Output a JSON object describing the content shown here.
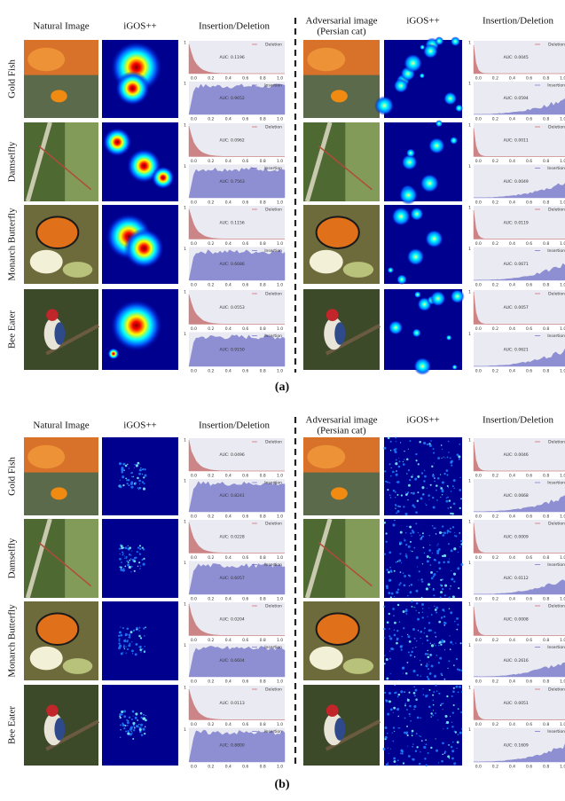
{
  "panels": [
    {
      "caption": "(a)",
      "halves": [
        {
          "headers": {
            "image": [
              "Natural Image"
            ],
            "saliency": "iGOS++",
            "curves": "Insertion/Deletion"
          },
          "rows": [
            {
              "label": "Gold Fish",
              "deletion_auc": "AUC: 0.1196",
              "insertion_auc": "AUC: 0.9652"
            },
            {
              "label": "Damselfly",
              "deletion_auc": "AUC: 0.0962",
              "insertion_auc": "AUC: 0.7563"
            },
            {
              "label": "Monarch Butterfly",
              "deletion_auc": "AUC: 0.1156",
              "insertion_auc": "AUC: 0.6686"
            },
            {
              "label": "Bee Eater",
              "deletion_auc": "AUC: 0.0553",
              "insertion_auc": "AUC: 0.9150"
            }
          ]
        },
        {
          "headers": {
            "image": [
              "Adversarial image",
              "(Persian cat)"
            ],
            "saliency": "iGOS++",
            "curves": "Insertion/Deletion"
          },
          "rows": [
            {
              "deletion_auc": "AUC: 0.0045",
              "insertion_auc": "AUC: 0.0594"
            },
            {
              "deletion_auc": "AUC: 0.0011",
              "insertion_auc": "AUC: 0.0049"
            },
            {
              "deletion_auc": "AUC: 0.0119",
              "insertion_auc": "AUC: 0.0671"
            },
            {
              "deletion_auc": "AUC: 0.0057",
              "insertion_auc": "AUC: 0.0621"
            }
          ]
        }
      ]
    },
    {
      "caption": "(b)",
      "halves": [
        {
          "headers": {
            "image": [
              "Natural Image"
            ],
            "saliency": "iGOS++",
            "curves": "Insertion/Deletion"
          },
          "rows": [
            {
              "label": "Gold Fish",
              "deletion_auc": "AUC: 0.0496",
              "insertion_auc": "AUC: 0.8241"
            },
            {
              "label": "Damselfly",
              "deletion_auc": "AUC: 0.0228",
              "insertion_auc": "AUC: 0.6057"
            },
            {
              "label": "Monarch Butterfly",
              "deletion_auc": "AUC: 0.0204",
              "insertion_auc": "AUC: 0.6604"
            },
            {
              "label": "Bee Eater",
              "deletion_auc": "AUC: 0.0113",
              "insertion_auc": "AUC: 0.8800"
            }
          ]
        },
        {
          "headers": {
            "image": [
              "Adversarial image",
              "(Persian cat)"
            ],
            "saliency": "iGOS++",
            "curves": "Insertion/Deletion"
          },
          "rows": [
            {
              "deletion_auc": "AUC: 0.0046",
              "insertion_auc": "AUC: 0.0668"
            },
            {
              "deletion_auc": "AUC: 0.0009",
              "insertion_auc": "AUC: 0.0112"
            },
            {
              "deletion_auc": "AUC: 0.0008",
              "insertion_auc": "AUC: 0.2616"
            },
            {
              "deletion_auc": "AUC: 0.0051",
              "insertion_auc": "AUC: 0.1609"
            }
          ]
        }
      ]
    }
  ],
  "legend": {
    "deletion": "Deletion",
    "insertion": "Insertion"
  },
  "xticks": [
    "0.0",
    "0.2",
    "0.4",
    "0.6",
    "0.8",
    "1.0"
  ],
  "yticks": [
    "0",
    "1"
  ]
}
